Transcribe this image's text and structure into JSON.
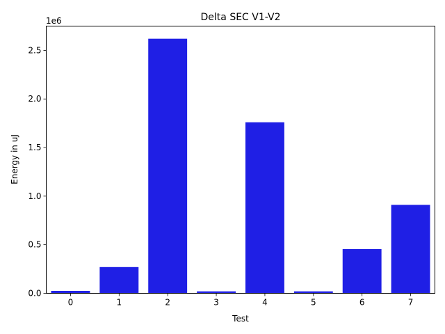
{
  "chart_data": {
    "type": "bar",
    "title": "Delta SEC V1-V2",
    "xlabel": "Test",
    "ylabel": "Energy in uJ",
    "y_offset_label": "1e6",
    "categories": [
      "0",
      "1",
      "2",
      "3",
      "4",
      "5",
      "6",
      "7"
    ],
    "values": [
      25000,
      270000,
      2620000,
      20000,
      1760000,
      20000,
      455000,
      910000
    ],
    "ylim": [
      0,
      2750000
    ],
    "yticks": [
      0,
      500000,
      1000000,
      1500000,
      2000000,
      2500000
    ],
    "ytick_labels": [
      "0.0",
      "0.5",
      "1.0",
      "1.5",
      "2.0",
      "2.5"
    ],
    "bar_color": "#1f1fe5",
    "grid": false,
    "legend": "none"
  }
}
